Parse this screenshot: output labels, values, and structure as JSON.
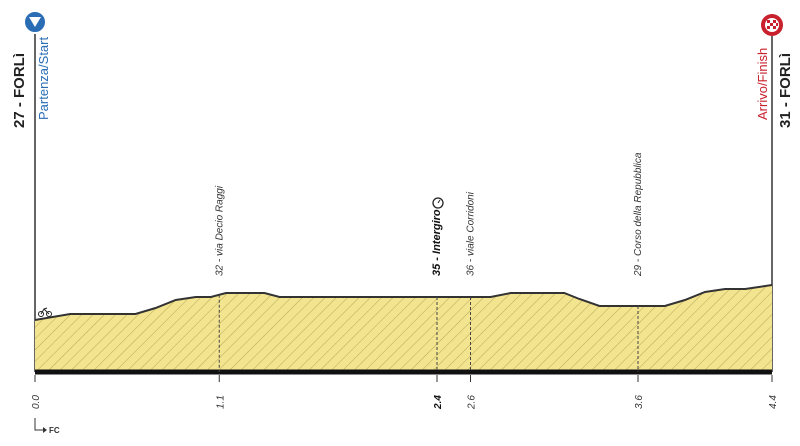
{
  "chart_data": {
    "type": "area",
    "start": {
      "label": "27 - FORLì",
      "sub": "Partenza/Start"
    },
    "finish": {
      "label": "31 - FORLì",
      "sub": "Arrivo/Finish"
    },
    "x": [
      0,
      0.21,
      0.6,
      0.72,
      0.84,
      0.96,
      1.05,
      1.14,
      1.37,
      1.46,
      2.72,
      2.84,
      3.16,
      3.25,
      3.37,
      3.76,
      3.88,
      4.0,
      4.12,
      4.24,
      4.4
    ],
    "values": [
      27.2,
      27.8,
      27.8,
      28.4,
      29.2,
      29.5,
      29.5,
      29.9,
      29.9,
      29.5,
      29.5,
      29.9,
      29.9,
      29.3,
      28.6,
      28.6,
      29.2,
      30,
      30.3,
      30.3,
      30.7
    ],
    "color": "#f3e48f",
    "xlim": [
      0,
      4.4
    ],
    "ylim": [
      22,
      42
    ],
    "xticks": [
      {
        "value": 0,
        "label": "0.0"
      },
      1.1,
      2.4,
      2.6,
      3.6,
      4.4
    ],
    "waypoints": [
      {
        "km": 1.1,
        "label": "32 - via Decio Raggi"
      },
      {
        "km": 2.4,
        "label": "35 - Intergiro"
      },
      {
        "km": 2.6,
        "label": "36 - viale Corridoni"
      },
      {
        "km": 3.6,
        "label": "29 - Corso della Repubblica"
      }
    ],
    "province": "FC"
  }
}
